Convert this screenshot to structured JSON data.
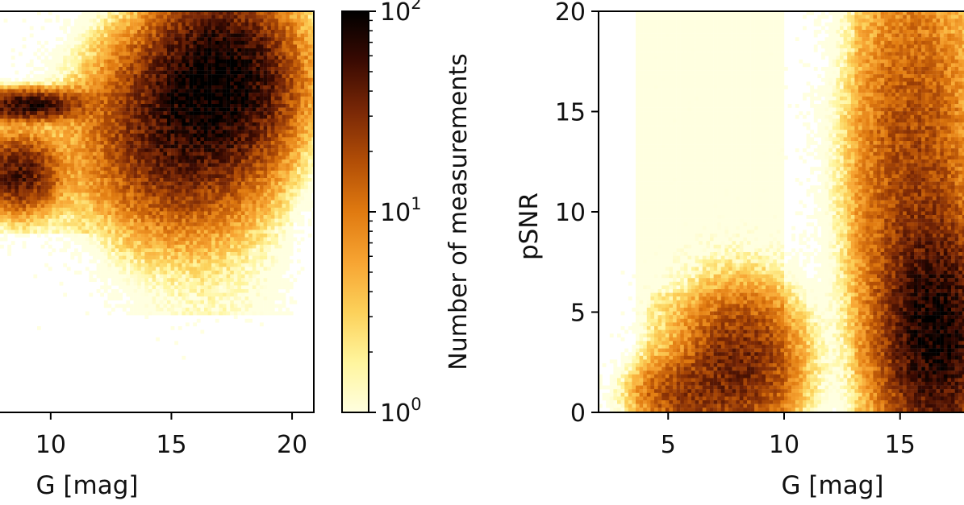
{
  "chart_data": [
    {
      "type": "heatmap",
      "panel": "left",
      "xlabel": "G [mag]",
      "ylabel": "",
      "xticks": [
        "10",
        "15",
        "20"
      ],
      "yticks": [],
      "x_visible_range": [
        7.9,
        20.9
      ],
      "colorbar": {
        "label": "Number of measurements",
        "scale": "log",
        "range": [
          1,
          100
        ],
        "ticks": [
          {
            "value": 1,
            "base": "10",
            "exp": "0"
          },
          {
            "value": 10,
            "base": "10",
            "exp": "1"
          },
          {
            "value": 100,
            "base": "10",
            "exp": "2"
          }
        ],
        "colormap": [
          "#ffffe0",
          "#fff59d",
          "#fcd15a",
          "#f7a432",
          "#e07a10",
          "#b24e06",
          "#7a2806",
          "#3a0a02",
          "#000000"
        ]
      },
      "density_clusters": [
        {
          "x": 17.0,
          "y_frac": 0.84,
          "sx": 1.6,
          "sy": 0.11,
          "peak": 90
        },
        {
          "x": 15.2,
          "y_frac": 0.7,
          "sx": 2.0,
          "sy": 0.13,
          "peak": 45
        },
        {
          "x": 8.6,
          "y_frac": 0.6,
          "sx": 0.9,
          "sy": 0.05,
          "peak": 50
        },
        {
          "x": 9.0,
          "y_frac": 0.77,
          "sx": 1.2,
          "sy": 0.02,
          "peak": 70
        }
      ]
    },
    {
      "type": "heatmap",
      "panel": "right",
      "xlabel": "G [mag]",
      "ylabel": "pSNR",
      "xticks": [
        "5",
        "10",
        "15"
      ],
      "yticks": [
        "0",
        "5",
        "10",
        "15",
        "20"
      ],
      "xlim": [
        2.0,
        18.0
      ],
      "ylim": [
        0,
        20
      ],
      "density_clusters": [
        {
          "x": 8.0,
          "y": 2.5,
          "sx": 1.4,
          "sy": 2.0,
          "peak": 35
        },
        {
          "x": 5.5,
          "y": 1.0,
          "sx": 1.2,
          "sy": 1.0,
          "peak": 20
        },
        {
          "x": 16.5,
          "y": 4.0,
          "sx": 1.3,
          "sy": 3.0,
          "peak": 80
        },
        {
          "x": 15.5,
          "y": 12.0,
          "sx": 1.5,
          "sy": 6.0,
          "peak": 20
        }
      ]
    }
  ]
}
